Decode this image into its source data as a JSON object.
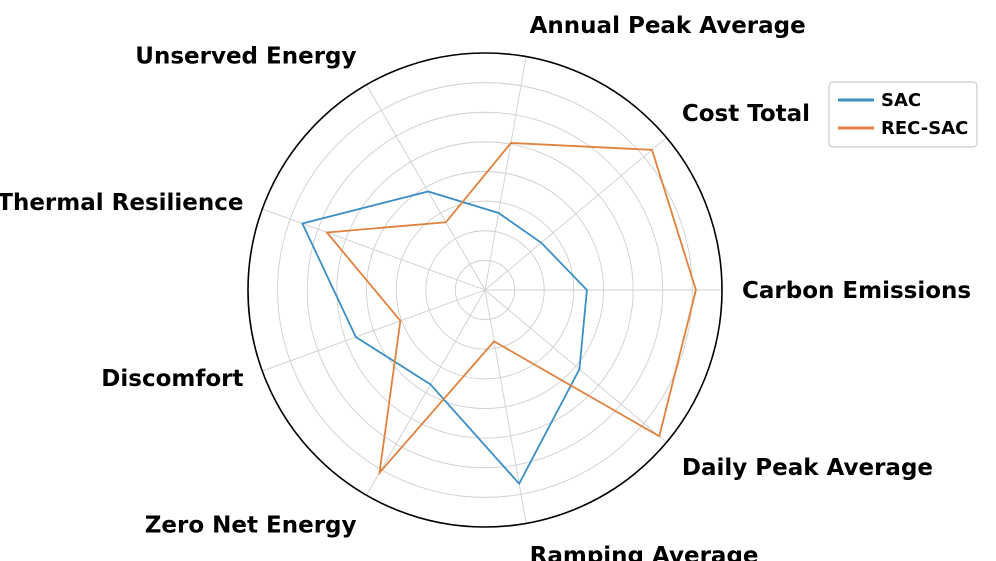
{
  "chart_data": {
    "type": "radar",
    "axes": [
      "Carbon Emissions",
      "Cost Total",
      "Annual Peak Average",
      "Unserved Energy",
      "Thermal Resilience",
      "Discomfort",
      "Zero Net Energy",
      "Ramping Average",
      "Daily Peak Average"
    ],
    "series": [
      {
        "name": "SAC",
        "color": "#3b8fc4",
        "values": [
          0.43,
          0.31,
          0.33,
          0.48,
          0.82,
          0.58,
          0.46,
          0.83,
          0.52
        ]
      },
      {
        "name": "REC-SAC",
        "color": "#e0823d",
        "values": [
          0.89,
          0.92,
          0.63,
          0.33,
          0.71,
          0.38,
          0.89,
          0.22,
          0.96
        ]
      }
    ],
    "rlim": [
      0,
      1
    ],
    "grid": true,
    "legend": "top-right"
  }
}
